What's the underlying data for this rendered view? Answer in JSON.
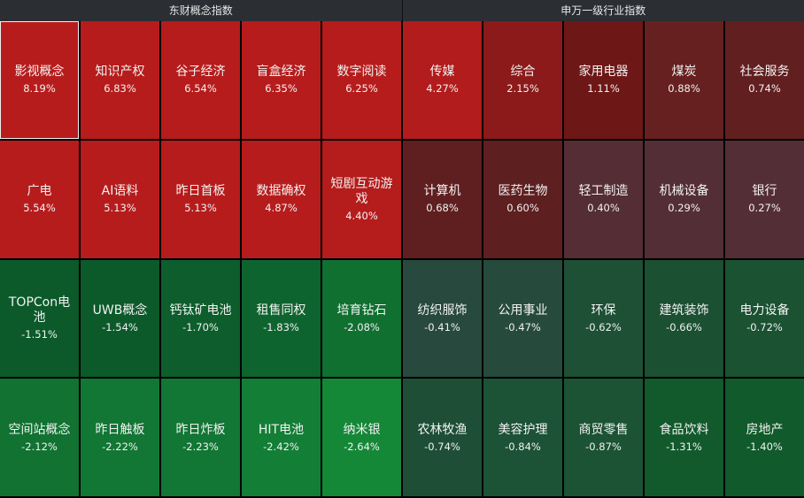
{
  "header": {
    "left_title": "东财概念指数",
    "right_title": "申万一级行业指数"
  },
  "rows": [
    [
      {
        "name": "影视概念",
        "pct": "8.19%",
        "color": "#b71c1c",
        "selected": true
      },
      {
        "name": "知识产权",
        "pct": "6.83%",
        "color": "#b71c1c"
      },
      {
        "name": "谷子经济",
        "pct": "6.54%",
        "color": "#b71c1c"
      },
      {
        "name": "盲盒经济",
        "pct": "6.35%",
        "color": "#b71c1c"
      },
      {
        "name": "数字阅读",
        "pct": "6.25%",
        "color": "#b71c1c"
      },
      {
        "name": "传媒",
        "pct": "4.27%",
        "color": "#b21c1c"
      },
      {
        "name": "综合",
        "pct": "2.15%",
        "color": "#8c1a1a"
      },
      {
        "name": "家用电器",
        "pct": "1.11%",
        "color": "#6e1717"
      },
      {
        "name": "煤炭",
        "pct": "0.88%",
        "color": "#662020"
      },
      {
        "name": "社会服务",
        "pct": "0.74%",
        "color": "#621f20"
      }
    ],
    [
      {
        "name": "广电",
        "pct": "5.54%",
        "color": "#b71c1c"
      },
      {
        "name": "AI语料",
        "pct": "5.13%",
        "color": "#b71c1c"
      },
      {
        "name": "昨日首板",
        "pct": "5.13%",
        "color": "#b71c1c"
      },
      {
        "name": "数据确权",
        "pct": "4.87%",
        "color": "#b71c1c"
      },
      {
        "name": "短剧互动游戏",
        "pct": "4.40%",
        "color": "#b51c1c"
      },
      {
        "name": "计算机",
        "pct": "0.68%",
        "color": "#5f1f20"
      },
      {
        "name": "医药生物",
        "pct": "0.60%",
        "color": "#5e1f20"
      },
      {
        "name": "轻工制造",
        "pct": "0.40%",
        "color": "#552d35"
      },
      {
        "name": "机械设备",
        "pct": "0.29%",
        "color": "#542e36"
      },
      {
        "name": "银行",
        "pct": "0.27%",
        "color": "#542e36"
      }
    ],
    [
      {
        "name": "TOPCon电池",
        "pct": "-1.51%",
        "color": "#0c5a2a"
      },
      {
        "name": "UWB概念",
        "pct": "-1.54%",
        "color": "#0c5a2a"
      },
      {
        "name": "钙钛矿电池",
        "pct": "-1.70%",
        "color": "#0d5e2c"
      },
      {
        "name": "租售同权",
        "pct": "-1.83%",
        "color": "#0e642e"
      },
      {
        "name": "培育钻石",
        "pct": "-2.08%",
        "color": "#107030"
      },
      {
        "name": "纺织服饰",
        "pct": "-0.41%",
        "color": "#284a3e"
      },
      {
        "name": "公用事业",
        "pct": "-0.47%",
        "color": "#264b3c"
      },
      {
        "name": "环保",
        "pct": "-0.62%",
        "color": "#1d5034"
      },
      {
        "name": "建筑装饰",
        "pct": "-0.66%",
        "color": "#1b5032"
      },
      {
        "name": "电力设备",
        "pct": "-0.72%",
        "color": "#1a5232"
      }
    ],
    [
      {
        "name": "空间站概念",
        "pct": "-2.12%",
        "color": "#117232"
      },
      {
        "name": "昨日触板",
        "pct": "-2.22%",
        "color": "#127634"
      },
      {
        "name": "昨日炸板",
        "pct": "-2.23%",
        "color": "#127634"
      },
      {
        "name": "HIT电池",
        "pct": "-2.42%",
        "color": "#137e36"
      },
      {
        "name": "纳米银",
        "pct": "-2.64%",
        "color": "#158838"
      },
      {
        "name": "农林牧渔",
        "pct": "-0.74%",
        "color": "#1e4f36"
      },
      {
        "name": "美容护理",
        "pct": "-0.84%",
        "color": "#1c5236"
      },
      {
        "name": "商贸零售",
        "pct": "-0.87%",
        "color": "#1b5334"
      },
      {
        "name": "食品饮料",
        "pct": "-1.31%",
        "color": "#125a2c"
      },
      {
        "name": "房地产",
        "pct": "-1.40%",
        "color": "#115a2b"
      }
    ]
  ]
}
